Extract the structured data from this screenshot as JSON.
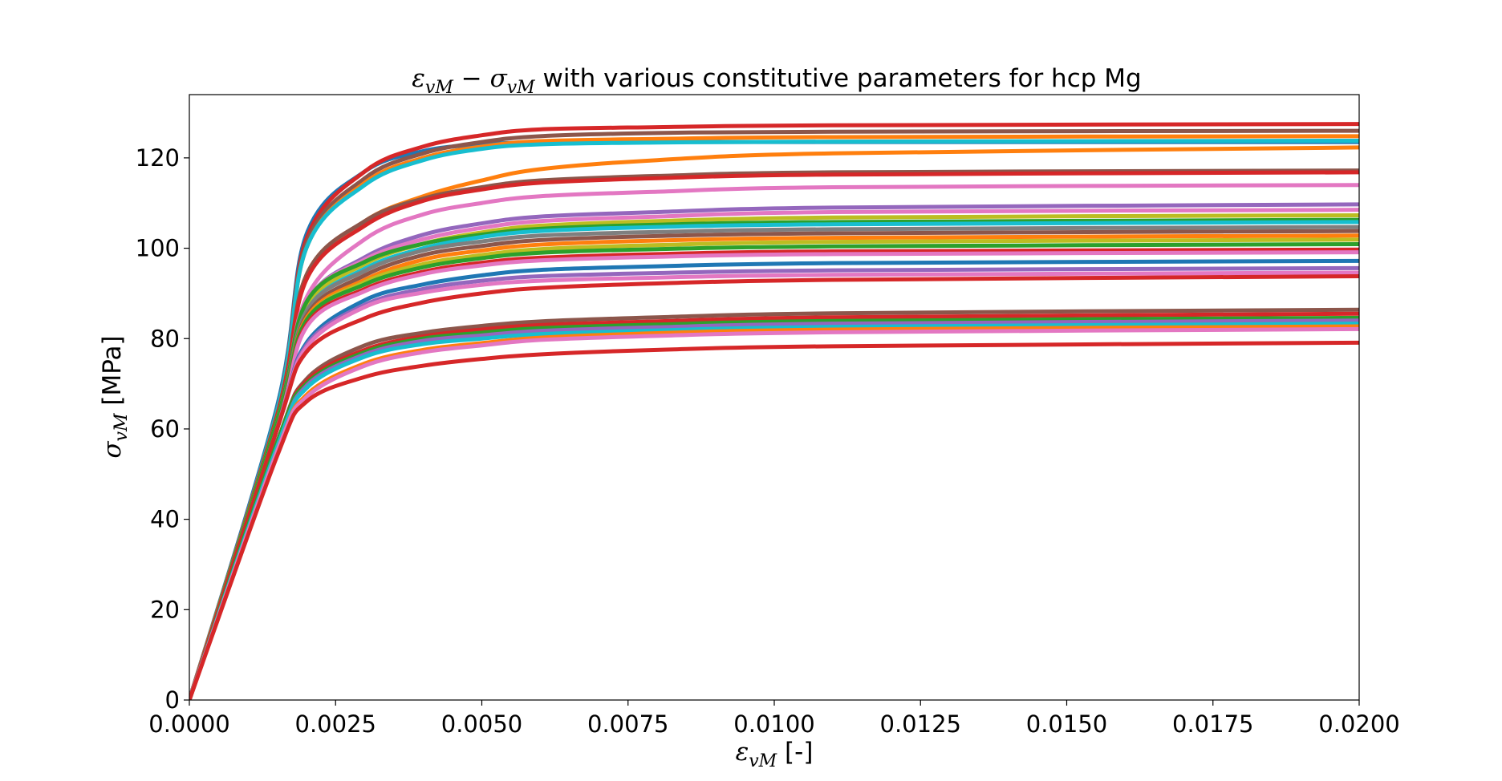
{
  "chart_data": {
    "type": "line",
    "title": {
      "sym1": "ε",
      "sub1": "vM",
      "minus": " − ",
      "sym2": "σ",
      "sub2": "vM",
      "rest": " with various constitutive parameters for hcp Mg"
    },
    "xlabel": {
      "sym": "ε",
      "sub": "vM",
      "unit": " [-]"
    },
    "ylabel": {
      "sym": "σ",
      "sub": "vM",
      "unit": " [MPa]"
    },
    "xlim": [
      0.0,
      0.02
    ],
    "ylim": [
      0,
      134
    ],
    "x_ticks": [
      0.0,
      0.0025,
      0.005,
      0.0075,
      0.01,
      0.0125,
      0.015,
      0.0175,
      0.02
    ],
    "x_tick_labels": [
      "0.0000",
      "0.0025",
      "0.0050",
      "0.0075",
      "0.0100",
      "0.0125",
      "0.0150",
      "0.0175",
      "0.0200"
    ],
    "y_ticks": [
      0,
      20,
      40,
      60,
      80,
      100,
      120
    ],
    "y_tick_labels": [
      "0",
      "20",
      "40",
      "60",
      "80",
      "100",
      "120"
    ],
    "grid": false,
    "legend": "none",
    "series": [
      {
        "color": "#1f77b4",
        "values": [
          0,
          65,
          103,
          117,
          121.5,
          123,
          123.4,
          123.5,
          123.5,
          123.5
        ]
      },
      {
        "color": "#d62728",
        "values": [
          0,
          64,
          102,
          117,
          122.5,
          125,
          126.3,
          126.8,
          127.2,
          127.5
        ]
      },
      {
        "color": "#8c564b",
        "values": [
          0,
          64,
          101,
          115.5,
          121,
          123.5,
          124.8,
          125.5,
          125.8,
          126.0
        ]
      },
      {
        "color": "#ff7f0e",
        "values": [
          0,
          64,
          100,
          114.5,
          120,
          122.5,
          123.7,
          124.2,
          124.6,
          124.8
        ]
      },
      {
        "color": "#17becf",
        "values": [
          0,
          64,
          100,
          114,
          119.5,
          122,
          123,
          123.4,
          123.6,
          123.8
        ]
      },
      {
        "color": "#ff7f0e",
        "values": [
          0,
          63,
          94,
          106,
          111.5,
          115,
          117.5,
          119.5,
          121,
          122.3
        ]
      },
      {
        "color": "#8c564b",
        "values": [
          0,
          63,
          94,
          106,
          111,
          113.5,
          115,
          116,
          116.8,
          117.2
        ]
      },
      {
        "color": "#d62728",
        "values": [
          0,
          63,
          93,
          105,
          110.5,
          113,
          114.5,
          115.5,
          116.3,
          116.8
        ]
      },
      {
        "color": "#e377c2",
        "values": [
          0,
          62,
          89,
          102,
          107.5,
          110,
          111.5,
          112.5,
          113.5,
          114
        ]
      },
      {
        "color": "#9467bd",
        "values": [
          0,
          62,
          88,
          98,
          103,
          105.5,
          107,
          108,
          109,
          109.7
        ]
      },
      {
        "color": "#e377c2",
        "values": [
          0,
          62,
          88,
          97.5,
          102,
          104.5,
          106,
          107,
          108,
          108.5
        ]
      },
      {
        "color": "#bcbd22",
        "values": [
          0,
          62,
          87,
          96.5,
          101,
          103.5,
          105,
          106,
          106.8,
          107.3
        ]
      },
      {
        "color": "#2ca02c",
        "values": [
          0,
          62,
          88,
          97,
          101,
          103,
          104.3,
          105.2,
          105.8,
          106.3
        ]
      },
      {
        "color": "#17becf",
        "values": [
          0,
          61,
          86,
          95.5,
          100,
          102.5,
          103.8,
          104.7,
          105.3,
          105.8
        ]
      },
      {
        "color": "#7f7f7f",
        "values": [
          0,
          61,
          86,
          95,
          99.5,
          101.5,
          102.8,
          103.6,
          104.2,
          104.7
        ]
      },
      {
        "color": "#8c564b",
        "values": [
          0,
          61,
          85,
          94,
          98.5,
          100.5,
          101.8,
          102.7,
          103.3,
          103.8
        ]
      },
      {
        "color": "#ff7f0e",
        "values": [
          0,
          61,
          84.5,
          93,
          97.5,
          99.5,
          100.8,
          101.7,
          102.3,
          102.8
        ]
      },
      {
        "color": "#bcbd22",
        "values": [
          0,
          61,
          84,
          92.5,
          96.5,
          98.5,
          99.8,
          100.7,
          101.4,
          101.9
        ]
      },
      {
        "color": "#2ca02c",
        "values": [
          0,
          61,
          84,
          92,
          95.8,
          97.8,
          99,
          99.8,
          100.4,
          100.9
        ]
      },
      {
        "color": "#d62728",
        "values": [
          0,
          60,
          83,
          91,
          94.8,
          96.8,
          97.9,
          98.7,
          99.3,
          99.7
        ]
      },
      {
        "color": "#e377c2",
        "values": [
          0,
          60,
          82.5,
          90.5,
          94.3,
          96.2,
          97.3,
          98.1,
          98.7,
          99.1
        ]
      },
      {
        "color": "#1f77b4",
        "values": [
          0,
          60,
          79,
          88.5,
          92,
          94,
          95.2,
          96,
          96.7,
          97.2
        ]
      },
      {
        "color": "#9467bd",
        "values": [
          0,
          60,
          78.5,
          87.5,
          91,
          92.8,
          93.8,
          94.5,
          95.1,
          95.6
        ]
      },
      {
        "color": "#e377c2",
        "values": [
          0,
          60,
          78,
          87,
          90.2,
          91.9,
          92.8,
          93.5,
          94.1,
          94.6
        ]
      },
      {
        "color": "#d62728",
        "values": [
          0,
          60,
          77,
          84.5,
          88,
          90,
          91.2,
          92.2,
          93,
          93.8
        ]
      },
      {
        "color": "#8c564b",
        "values": [
          0,
          57,
          71,
          78.5,
          81.3,
          82.8,
          83.8,
          84.7,
          85.6,
          86.4
        ]
      },
      {
        "color": "#d62728",
        "values": [
          0,
          57,
          70.5,
          77.5,
          80.5,
          82,
          83,
          83.8,
          84.7,
          85.5
        ]
      },
      {
        "color": "#2ca02c",
        "values": [
          0,
          57,
          70,
          77,
          80,
          81.3,
          82.3,
          83.1,
          83.9,
          84.6
        ]
      },
      {
        "color": "#9467bd",
        "values": [
          0,
          56,
          69.5,
          76.5,
          79.5,
          80.7,
          81.7,
          82.5,
          83.3,
          84
        ]
      },
      {
        "color": "#17becf",
        "values": [
          0,
          56,
          69,
          76,
          78.8,
          80,
          81,
          81.8,
          82.6,
          83.3
        ]
      },
      {
        "color": "#ff7f0e",
        "values": [
          0,
          55,
          67.5,
          74.5,
          77.5,
          79,
          80.2,
          81.2,
          82,
          82.7
        ]
      },
      {
        "color": "#e377c2",
        "values": [
          0,
          55,
          67,
          74,
          77,
          78.5,
          79.7,
          80.6,
          81.4,
          82.1
        ]
      },
      {
        "color": "#d62728",
        "values": [
          0,
          54,
          66,
          71.5,
          74,
          75.5,
          76.5,
          77.5,
          78.3,
          79.1
        ]
      }
    ],
    "x": [
      0.0,
      0.0015,
      0.002,
      0.003,
      0.004,
      0.005,
      0.006,
      0.008,
      0.011,
      0.02
    ]
  }
}
